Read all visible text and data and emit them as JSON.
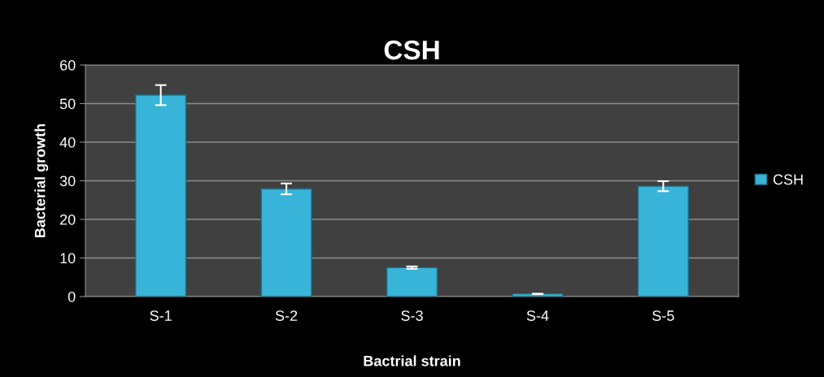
{
  "chart_data": {
    "type": "bar",
    "title": "CSH",
    "xlabel": "Bactrial strain",
    "ylabel": "Bacterial growth",
    "categories": [
      "S-1",
      "S-2",
      "S-3",
      "S-4",
      "S-5"
    ],
    "series": [
      {
        "name": "CSH",
        "color": "#38b4d8",
        "values": [
          52.2,
          27.9,
          7.5,
          0.7,
          28.6
        ],
        "errors": [
          2.6,
          1.4,
          0.3,
          null,
          1.3
        ]
      }
    ],
    "ylim": [
      0,
      60
    ],
    "yticks": [
      0,
      10,
      20,
      30,
      40,
      50,
      60
    ],
    "grid": "y",
    "legend": "right"
  }
}
